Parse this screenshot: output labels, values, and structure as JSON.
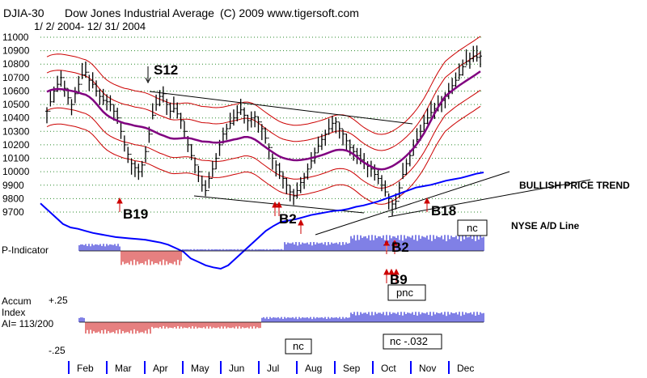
{
  "header": {
    "ticker": "DJIA-30",
    "name": "Dow Jones Industrial Average",
    "copyright": "(C) 2009 www.tigersoft.com",
    "date_range": "1/ 2/ 2004- 12/ 31/ 2004"
  },
  "price_axis": {
    "ticks": [
      "11000",
      "10900",
      "10800",
      "10700",
      "10600",
      "10500",
      "10400",
      "10300",
      "10200",
      "10100",
      "10000",
      "9900",
      "9800",
      "9700"
    ],
    "values": [
      11000,
      10900,
      10800,
      10700,
      10600,
      10500,
      10400,
      10300,
      10200,
      10100,
      10000,
      9900,
      9800,
      9700
    ]
  },
  "panels": {
    "p_indicator_label": "P-Indicator",
    "accum_label": "Accum",
    "index_label": "Index",
    "ai_label": "AI= 113/200",
    "accum_top": "+.25",
    "accum_bottom": "-.25"
  },
  "signals": {
    "s12": "S12",
    "b19": "B19",
    "b2_jul": "B2",
    "b2_oct": "B2",
    "b18": "B18",
    "b9": "B9"
  },
  "annotations": {
    "trendline": "BULLISH PRICE TREND",
    "nyse": "NYSE A/D Line",
    "nc_box_1": "nc",
    "pnc_box": "pnc",
    "nc_box_2": "nc",
    "nc_box_3": "nc -.032"
  },
  "months": [
    "Feb",
    "Mar",
    "Apr",
    "May",
    "Jun",
    "Jul",
    "Aug",
    "Sep",
    "Oct",
    "Nov",
    "Dec"
  ],
  "colors": {
    "price_bars": "#000000",
    "bands": "#cc0000",
    "moving_average": "#800080",
    "ad_line": "#0000ff",
    "positive_hist": "#0000cc",
    "negative_hist": "#cc0000",
    "grid": "#2a8a2a",
    "trendline": "#000000"
  },
  "chart_data": {
    "type": "ohlc",
    "title": "Dow Jones Industrial Average",
    "x_labels": [
      "Feb",
      "Mar",
      "Apr",
      "May",
      "Jun",
      "Jul",
      "Aug",
      "Sep",
      "Oct",
      "Nov",
      "Dec"
    ],
    "ylim": [
      9700,
      11000
    ],
    "grid": true,
    "closes": [
      10450,
      10520,
      10600,
      10650,
      10700,
      10620,
      10550,
      10500,
      10580,
      10650,
      10720,
      10740,
      10680,
      10650,
      10600,
      10560,
      10530,
      10520,
      10500,
      10450,
      10400,
      10300,
      10200,
      10130,
      10060,
      10030,
      10000,
      10050,
      10150,
      10280,
      10420,
      10500,
      10560,
      10580,
      10500,
      10450,
      10470,
      10430,
      10380,
      10300,
      10200,
      10120,
      10050,
      10000,
      9900,
      9860,
      9950,
      10020,
      10100,
      10200,
      10280,
      10320,
      10360,
      10400,
      10440,
      10460,
      10420,
      10380,
      10400,
      10410,
      10370,
      10320,
      10250,
      10180,
      10100,
      10050,
      10000,
      9950,
      9900,
      9850,
      9820,
      9860,
      9920,
      9960,
      10020,
      10080,
      10140,
      10190,
      10240,
      10280,
      10320,
      10360,
      10370,
      10320,
      10280,
      10230,
      10180,
      10150,
      10120,
      10090,
      10060,
      10040,
      10020,
      9980,
      9950,
      9900,
      9850,
      9800,
      9760,
      9780,
      9880,
      9980,
      10060,
      10120,
      10180,
      10240,
      10300,
      10360,
      10400,
      10440,
      10470,
      10500,
      10530,
      10560,
      10600,
      10640,
      10680,
      10720,
      10780,
      10820,
      10840,
      10860,
      10850,
      10860
    ],
    "series": [
      {
        "name": "NYSE A/D Line",
        "values": [
          0.55,
          0.45,
          0.35,
          0.25,
          0.2,
          0.18,
          0.15,
          0.12,
          0.1,
          0.08,
          0.06,
          0.05,
          0.04,
          0.03,
          0.02,
          0.0,
          -0.02,
          -0.05,
          -0.1,
          -0.15,
          -0.25,
          -0.3,
          -0.35,
          -0.38,
          -0.4,
          -0.35,
          -0.25,
          -0.15,
          -0.05,
          0.05,
          0.15,
          0.22,
          0.28,
          0.3,
          0.32,
          0.35,
          0.38,
          0.4,
          0.42,
          0.44,
          0.45,
          0.47,
          0.5,
          0.52,
          0.55,
          0.58,
          0.62,
          0.66,
          0.7,
          0.74,
          0.78,
          0.8,
          0.82,
          0.85,
          0.88,
          0.9,
          0.92,
          0.95,
          0.98,
          1.0
        ]
      }
    ]
  }
}
